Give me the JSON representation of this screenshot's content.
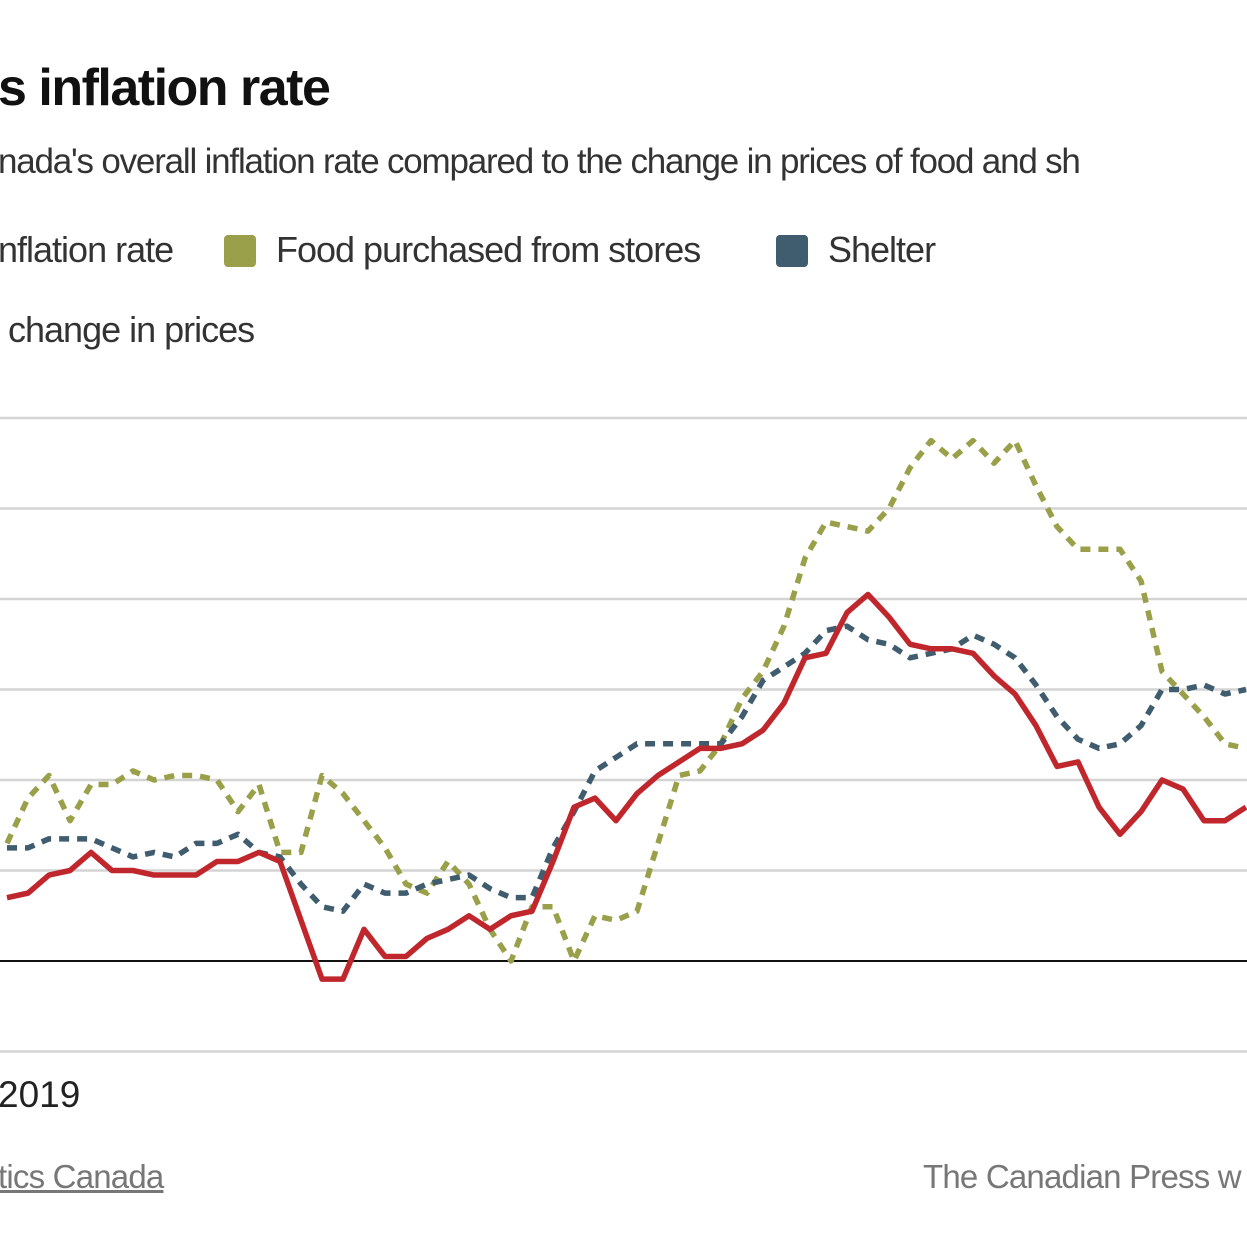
{
  "header": {
    "title": "s inflation rate",
    "subtitle": "nada's overall inflation rate compared to the change in prices of food and sh"
  },
  "legend": {
    "items": [
      {
        "label": "nflation rate",
        "color": "#c0272d"
      },
      {
        "label": "Food purchased from stores",
        "color": "#9aa04a"
      },
      {
        "label": "Shelter",
        "color": "#3f5d6e"
      }
    ],
    "unit_label": "change in prices"
  },
  "footer": {
    "source": "tics Canada",
    "credit": "The Canadian Press w"
  },
  "chart_data": {
    "type": "line",
    "x_label_visible": "2019",
    "x": [
      "2019-01",
      "2019-02",
      "2019-03",
      "2019-04",
      "2019-05",
      "2019-06",
      "2019-07",
      "2019-08",
      "2019-09",
      "2019-10",
      "2019-11",
      "2019-12",
      "2020-01",
      "2020-02",
      "2020-03",
      "2020-04",
      "2020-05",
      "2020-06",
      "2020-07",
      "2020-08",
      "2020-09",
      "2020-10",
      "2020-11",
      "2020-12",
      "2021-01",
      "2021-02",
      "2021-03",
      "2021-04",
      "2021-05",
      "2021-06",
      "2021-07",
      "2021-08",
      "2021-09",
      "2021-10",
      "2021-11",
      "2021-12",
      "2022-01",
      "2022-02",
      "2022-03",
      "2022-04",
      "2022-05",
      "2022-06",
      "2022-07",
      "2022-08",
      "2022-09",
      "2022-10",
      "2022-11",
      "2022-12",
      "2023-01",
      "2023-02",
      "2023-03",
      "2023-04",
      "2023-05",
      "2023-06",
      "2023-07",
      "2023-08",
      "2023-09",
      "2023-10",
      "2023-11",
      "2023-12"
    ],
    "ylim": [
      -2,
      12
    ],
    "y_gridlines": [
      -2,
      0,
      2,
      4,
      6,
      8,
      10,
      12
    ],
    "grid": true,
    "legend_position": "top",
    "series": [
      {
        "name": "Food purchased from stores",
        "color": "#9aa04a",
        "style": "dashed",
        "values": [
          2.6,
          3.6,
          4.1,
          3.1,
          3.9,
          3.9,
          4.2,
          4.0,
          4.1,
          4.1,
          4.0,
          3.3,
          3.9,
          2.4,
          2.4,
          4.1,
          3.7,
          3.1,
          2.5,
          1.7,
          1.5,
          2.2,
          1.7,
          0.7,
          0.0,
          1.2,
          1.2,
          0.0,
          1.0,
          0.9,
          1.1,
          2.6,
          4.1,
          4.2,
          4.8,
          5.8,
          6.4,
          7.4,
          8.9,
          9.7,
          9.6,
          9.5,
          10.0,
          10.9,
          11.5,
          11.1,
          11.5,
          11.0,
          11.5,
          10.5,
          9.6,
          9.1,
          9.1,
          9.1,
          8.4,
          6.4,
          5.9,
          5.4,
          4.8,
          4.7
        ]
      },
      {
        "name": "Shelter",
        "color": "#3f5d6e",
        "style": "dashed",
        "values": [
          2.5,
          2.5,
          2.7,
          2.7,
          2.7,
          2.5,
          2.3,
          2.4,
          2.3,
          2.6,
          2.6,
          2.8,
          2.4,
          2.3,
          1.7,
          1.2,
          1.1,
          1.7,
          1.5,
          1.5,
          1.7,
          1.8,
          1.9,
          1.6,
          1.4,
          1.4,
          2.5,
          3.3,
          4.2,
          4.5,
          4.8,
          4.8,
          4.8,
          4.8,
          4.8,
          5.4,
          6.2,
          6.5,
          6.8,
          7.3,
          7.4,
          7.1,
          7.0,
          6.7,
          6.8,
          6.9,
          7.2,
          7.0,
          6.7,
          6.1,
          5.4,
          4.9,
          4.7,
          4.8,
          5.2,
          6.0,
          6.0,
          6.1,
          5.9,
          6.0
        ]
      },
      {
        "name": "nflation rate",
        "color": "#c0272d",
        "style": "solid",
        "values": [
          1.4,
          1.5,
          1.9,
          2.0,
          2.4,
          2.0,
          2.0,
          1.9,
          1.9,
          1.9,
          2.2,
          2.2,
          2.4,
          2.2,
          0.9,
          -0.4,
          -0.4,
          0.7,
          0.1,
          0.1,
          0.5,
          0.7,
          1.0,
          0.7,
          1.0,
          1.1,
          2.2,
          3.4,
          3.6,
          3.1,
          3.7,
          4.1,
          4.4,
          4.7,
          4.7,
          4.8,
          5.1,
          5.7,
          6.7,
          6.8,
          7.7,
          8.1,
          7.6,
          7.0,
          6.9,
          6.9,
          6.8,
          6.3,
          5.9,
          5.2,
          4.3,
          4.4,
          3.4,
          2.8,
          3.3,
          4.0,
          3.8,
          3.1,
          3.1,
          3.4
        ]
      }
    ]
  }
}
